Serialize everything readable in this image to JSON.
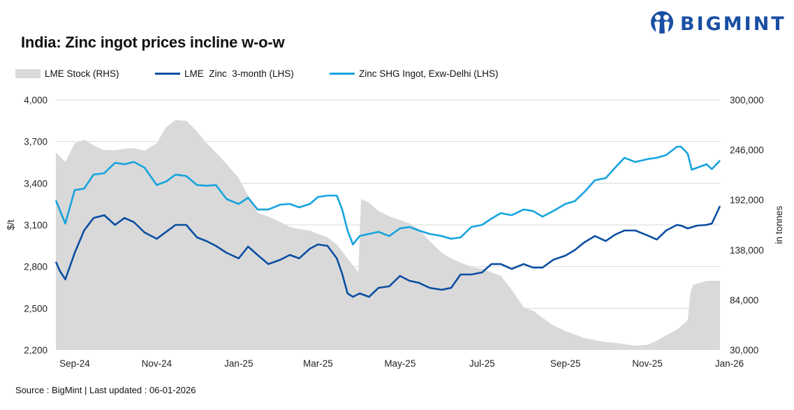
{
  "logo": {
    "text": "BIGMINT",
    "color": "#1a4fa3"
  },
  "source": "Source : BigMint | Last updated : 06-01-2026",
  "chart_data": {
    "type": "line",
    "title": "India: Zinc ingot prices incline w-o-w",
    "ylabel": "$/t",
    "y2label": "in tonnes",
    "ylim": [
      2200,
      4000
    ],
    "y2lim": [
      30000,
      300000
    ],
    "yticks": [
      "2,200",
      "2,500",
      "2,800",
      "3,100",
      "3,400",
      "3,700",
      "4,000"
    ],
    "y2ticks": [
      "30,000",
      "84,000",
      "138,000",
      "192,000",
      "246,000",
      "300,000"
    ],
    "xrange": [
      "2024-08-18",
      "2025-12-25"
    ],
    "xticks": [
      {
        "date": "2024-09-01",
        "label": "Sep-24"
      },
      {
        "date": "2024-11-01",
        "label": "Nov-24"
      },
      {
        "date": "2025-01-01",
        "label": "Jan-25"
      },
      {
        "date": "2025-03-01",
        "label": "Mar-25"
      },
      {
        "date": "2025-05-01",
        "label": "May-25"
      },
      {
        "date": "2025-07-01",
        "label": "Jul-25"
      },
      {
        "date": "2025-09-01",
        "label": "Sep-25"
      },
      {
        "date": "2025-11-01",
        "label": "Nov-25"
      },
      {
        "date": "2026-01-01",
        "label": "Jan-26"
      }
    ],
    "grid": true,
    "legend_position": "top",
    "series": [
      {
        "name": "LME Stock (RHS)",
        "type": "area",
        "axis": "right",
        "color": "#d9d9d9",
        "points": [
          [
            "2024-08-18",
            243450
          ],
          [
            "2024-08-25",
            232900
          ],
          [
            "2024-09-01",
            253250
          ],
          [
            "2024-09-08",
            257000
          ],
          [
            "2024-09-15",
            251000
          ],
          [
            "2024-09-23",
            245700
          ],
          [
            "2024-10-01",
            245700
          ],
          [
            "2024-10-08",
            247200
          ],
          [
            "2024-10-15",
            248000
          ],
          [
            "2024-10-23",
            245000
          ],
          [
            "2024-11-01",
            253250
          ],
          [
            "2024-11-08",
            270600
          ],
          [
            "2024-11-15",
            278100
          ],
          [
            "2024-11-23",
            277400
          ],
          [
            "2024-12-01",
            266100
          ],
          [
            "2024-12-08",
            253250
          ],
          [
            "2024-12-15",
            243450
          ],
          [
            "2024-12-23",
            230600
          ],
          [
            "2025-01-01",
            215500
          ],
          [
            "2025-01-08",
            196700
          ],
          [
            "2025-01-15",
            177900
          ],
          [
            "2025-01-23",
            174100
          ],
          [
            "2025-02-01",
            168000
          ],
          [
            "2025-02-08",
            162800
          ],
          [
            "2025-02-15",
            160500
          ],
          [
            "2025-02-23",
            159000
          ],
          [
            "2025-03-01",
            155200
          ],
          [
            "2025-03-08",
            151500
          ],
          [
            "2025-03-15",
            143900
          ],
          [
            "2025-03-23",
            128900
          ],
          [
            "2025-03-31",
            113800
          ],
          [
            "2025-04-02",
            192900
          ],
          [
            "2025-04-08",
            189200
          ],
          [
            "2025-04-15",
            180100
          ],
          [
            "2025-04-23",
            174100
          ],
          [
            "2025-05-01",
            170300
          ],
          [
            "2025-05-08",
            166600
          ],
          [
            "2025-05-15",
            160500
          ],
          [
            "2025-05-23",
            147700
          ],
          [
            "2025-06-01",
            134900
          ],
          [
            "2025-06-08",
            128900
          ],
          [
            "2025-06-15",
            124300
          ],
          [
            "2025-06-23",
            119800
          ],
          [
            "2025-07-01",
            117500
          ],
          [
            "2025-07-08",
            113800
          ],
          [
            "2025-07-15",
            110000
          ],
          [
            "2025-07-23",
            94900
          ],
          [
            "2025-08-01",
            76000
          ],
          [
            "2025-08-08",
            72300
          ],
          [
            "2025-08-15",
            64800
          ],
          [
            "2025-08-23",
            56500
          ],
          [
            "2025-09-01",
            50400
          ],
          [
            "2025-09-08",
            46700
          ],
          [
            "2025-09-15",
            42900
          ],
          [
            "2025-09-23",
            40600
          ],
          [
            "2025-10-01",
            38400
          ],
          [
            "2025-10-08",
            37600
          ],
          [
            "2025-10-15",
            36100
          ],
          [
            "2025-10-23",
            34600
          ],
          [
            "2025-11-01",
            35400
          ],
          [
            "2025-11-08",
            39900
          ],
          [
            "2025-11-15",
            45900
          ],
          [
            "2025-11-23",
            51900
          ],
          [
            "2025-11-29",
            59500
          ],
          [
            "2025-12-01",
            62500
          ],
          [
            "2025-12-03",
            91100
          ],
          [
            "2025-12-05",
            100200
          ],
          [
            "2025-12-15",
            104700
          ],
          [
            "2025-12-25",
            104700
          ]
        ]
      },
      {
        "name": "LME  Zinc  3-month (LHS)",
        "type": "line",
        "axis": "left",
        "color": "#0b4ea2",
        "points": [
          [
            "2024-08-18",
            2834
          ],
          [
            "2024-08-21",
            2768
          ],
          [
            "2024-08-25",
            2708
          ],
          [
            "2024-09-01",
            2899
          ],
          [
            "2024-09-08",
            3060
          ],
          [
            "2024-09-15",
            3150
          ],
          [
            "2024-09-23",
            3170
          ],
          [
            "2024-10-01",
            3100
          ],
          [
            "2024-10-08",
            3150
          ],
          [
            "2024-10-15",
            3120
          ],
          [
            "2024-10-23",
            3045
          ],
          [
            "2024-11-01",
            3000
          ],
          [
            "2024-11-08",
            3050
          ],
          [
            "2024-11-15",
            3100
          ],
          [
            "2024-11-23",
            3100
          ],
          [
            "2024-12-01",
            3010
          ],
          [
            "2024-12-08",
            2984
          ],
          [
            "2024-12-15",
            2949
          ],
          [
            "2024-12-23",
            2899
          ],
          [
            "2025-01-01",
            2859
          ],
          [
            "2025-01-08",
            2944
          ],
          [
            "2025-01-15",
            2884
          ],
          [
            "2025-01-23",
            2818
          ],
          [
            "2025-02-01",
            2849
          ],
          [
            "2025-02-08",
            2884
          ],
          [
            "2025-02-15",
            2859
          ],
          [
            "2025-02-23",
            2929
          ],
          [
            "2025-03-01",
            2959
          ],
          [
            "2025-03-08",
            2949
          ],
          [
            "2025-03-15",
            2859
          ],
          [
            "2025-03-19",
            2748
          ],
          [
            "2025-03-23",
            2607
          ],
          [
            "2025-03-27",
            2582
          ],
          [
            "2025-04-01",
            2607
          ],
          [
            "2025-04-08",
            2582
          ],
          [
            "2025-04-15",
            2647
          ],
          [
            "2025-04-23",
            2658
          ],
          [
            "2025-05-01",
            2733
          ],
          [
            "2025-05-08",
            2698
          ],
          [
            "2025-05-15",
            2683
          ],
          [
            "2025-05-23",
            2647
          ],
          [
            "2025-06-01",
            2633
          ],
          [
            "2025-06-08",
            2647
          ],
          [
            "2025-06-15",
            2743
          ],
          [
            "2025-06-23",
            2743
          ],
          [
            "2025-07-01",
            2758
          ],
          [
            "2025-07-08",
            2818
          ],
          [
            "2025-07-15",
            2818
          ],
          [
            "2025-07-23",
            2783
          ],
          [
            "2025-08-01",
            2818
          ],
          [
            "2025-08-08",
            2793
          ],
          [
            "2025-08-15",
            2793
          ],
          [
            "2025-08-23",
            2849
          ],
          [
            "2025-09-01",
            2879
          ],
          [
            "2025-09-08",
            2919
          ],
          [
            "2025-09-15",
            2974
          ],
          [
            "2025-09-23",
            3020
          ],
          [
            "2025-10-01",
            2984
          ],
          [
            "2025-10-08",
            3030
          ],
          [
            "2025-10-15",
            3060
          ],
          [
            "2025-10-23",
            3060
          ],
          [
            "2025-11-01",
            3025
          ],
          [
            "2025-11-08",
            2995
          ],
          [
            "2025-11-15",
            3060
          ],
          [
            "2025-11-23",
            3100
          ],
          [
            "2025-11-26",
            3095
          ],
          [
            "2025-12-01",
            3075
          ],
          [
            "2025-12-08",
            3095
          ],
          [
            "2025-12-15",
            3100
          ],
          [
            "2025-12-19",
            3110
          ],
          [
            "2025-12-25",
            3236
          ]
        ]
      },
      {
        "name": "Zinc SHG Ingot, Exw-Delhi (LHS)",
        "type": "line",
        "axis": "left",
        "color": "#16a3de",
        "points": [
          [
            "2024-08-18",
            3276
          ],
          [
            "2024-08-25",
            3110
          ],
          [
            "2024-09-01",
            3351
          ],
          [
            "2024-09-08",
            3361
          ],
          [
            "2024-09-15",
            3462
          ],
          [
            "2024-09-23",
            3472
          ],
          [
            "2024-10-01",
            3547
          ],
          [
            "2024-10-08",
            3537
          ],
          [
            "2024-10-15",
            3553
          ],
          [
            "2024-10-23",
            3512
          ],
          [
            "2024-11-01",
            3387
          ],
          [
            "2024-11-08",
            3412
          ],
          [
            "2024-11-15",
            3462
          ],
          [
            "2024-11-23",
            3452
          ],
          [
            "2024-12-01",
            3387
          ],
          [
            "2024-12-08",
            3382
          ],
          [
            "2024-12-15",
            3387
          ],
          [
            "2024-12-23",
            3286
          ],
          [
            "2025-01-01",
            3251
          ],
          [
            "2025-01-08",
            3296
          ],
          [
            "2025-01-15",
            3211
          ],
          [
            "2025-01-23",
            3211
          ],
          [
            "2025-02-01",
            3246
          ],
          [
            "2025-02-08",
            3251
          ],
          [
            "2025-02-15",
            3226
          ],
          [
            "2025-02-23",
            3251
          ],
          [
            "2025-03-01",
            3301
          ],
          [
            "2025-03-08",
            3311
          ],
          [
            "2025-03-15",
            3311
          ],
          [
            "2025-03-19",
            3211
          ],
          [
            "2025-03-23",
            3060
          ],
          [
            "2025-03-27",
            2959
          ],
          [
            "2025-04-01",
            3020
          ],
          [
            "2025-04-08",
            3035
          ],
          [
            "2025-04-15",
            3050
          ],
          [
            "2025-04-23",
            3020
          ],
          [
            "2025-05-01",
            3075
          ],
          [
            "2025-05-08",
            3085
          ],
          [
            "2025-05-15",
            3060
          ],
          [
            "2025-05-23",
            3035
          ],
          [
            "2025-06-01",
            3020
          ],
          [
            "2025-06-08",
            3000
          ],
          [
            "2025-06-15",
            3010
          ],
          [
            "2025-06-23",
            3085
          ],
          [
            "2025-07-01",
            3100
          ],
          [
            "2025-07-08",
            3145
          ],
          [
            "2025-07-15",
            3185
          ],
          [
            "2025-07-23",
            3170
          ],
          [
            "2025-08-01",
            3211
          ],
          [
            "2025-08-08",
            3200
          ],
          [
            "2025-08-15",
            3160
          ],
          [
            "2025-08-23",
            3200
          ],
          [
            "2025-09-01",
            3251
          ],
          [
            "2025-09-08",
            3271
          ],
          [
            "2025-09-15",
            3336
          ],
          [
            "2025-09-23",
            3422
          ],
          [
            "2025-10-01",
            3437
          ],
          [
            "2025-10-08",
            3512
          ],
          [
            "2025-10-15",
            3583
          ],
          [
            "2025-10-23",
            3553
          ],
          [
            "2025-11-01",
            3573
          ],
          [
            "2025-11-08",
            3583
          ],
          [
            "2025-11-15",
            3603
          ],
          [
            "2025-11-23",
            3663
          ],
          [
            "2025-11-26",
            3663
          ],
          [
            "2025-12-01",
            3613
          ],
          [
            "2025-12-04",
            3497
          ],
          [
            "2025-12-08",
            3512
          ],
          [
            "2025-12-15",
            3537
          ],
          [
            "2025-12-19",
            3502
          ],
          [
            "2025-12-25",
            3563
          ]
        ]
      }
    ]
  }
}
